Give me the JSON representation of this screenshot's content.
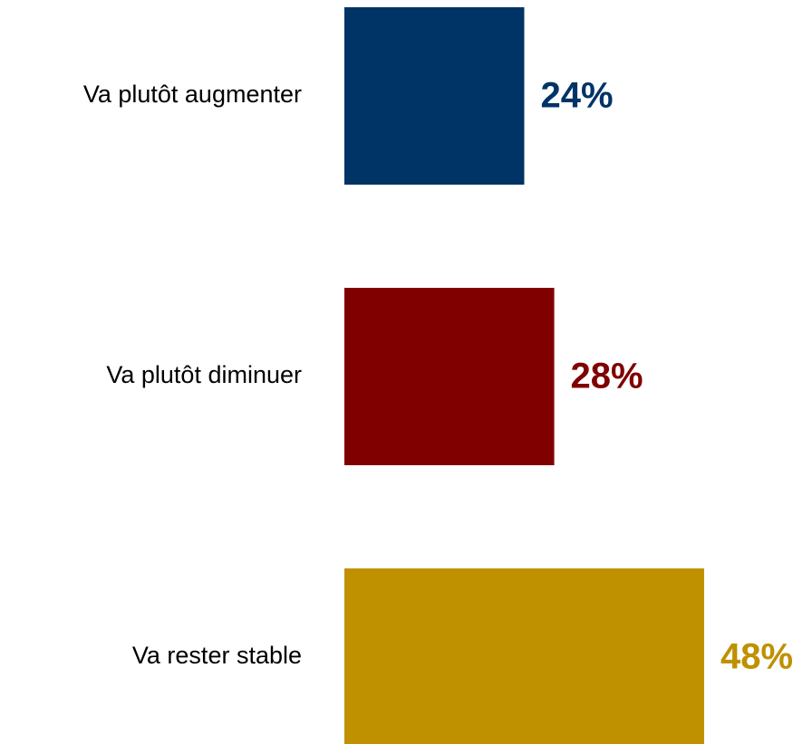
{
  "chart_data": {
    "type": "bar",
    "orientation": "horizontal",
    "categories": [
      "Va plutôt augmenter",
      "Va plutôt diminuer",
      "Va rester stable"
    ],
    "values": [
      24,
      28,
      48
    ],
    "value_labels": [
      "24%",
      "28%",
      "48%"
    ],
    "colors": [
      "#003366",
      "#800000",
      "#bf9000"
    ]
  }
}
